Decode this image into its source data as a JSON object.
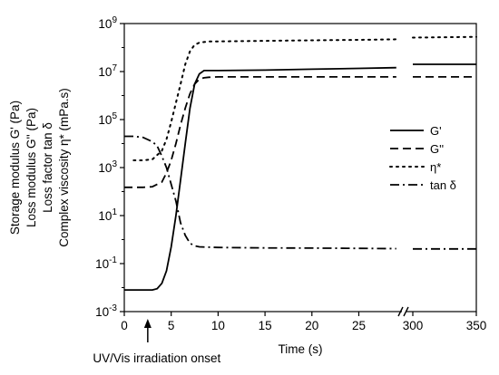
{
  "chart_data": {
    "type": "line",
    "xlabel": "Time (s)",
    "ylabel_lines": [
      "Storage modulus G' (Pa)",
      "Loss modulus G'' (Pa)",
      "Loss factor tan δ",
      "Complex viscosity η* (mPa.s)"
    ],
    "x_axis": {
      "segments": [
        {
          "range": [
            0,
            29.5
          ],
          "ticks": [
            0,
            5,
            10,
            15,
            20,
            25
          ]
        },
        {
          "range": [
            295,
            350
          ],
          "ticks": [
            300,
            350
          ]
        }
      ],
      "tick_labels": [
        "0",
        "5",
        "10",
        "15",
        "20",
        "25",
        "300",
        "350"
      ],
      "break_between": [
        29.5,
        295
      ]
    },
    "y_axis": {
      "scale": "log",
      "range": [
        0.001,
        1000000000
      ],
      "ticks": [
        0.001,
        0.1,
        10,
        1000,
        100000,
        10000000,
        1000000000
      ],
      "tick_labels": [
        {
          "base": "10",
          "exp": "-3"
        },
        {
          "base": "10",
          "exp": "-1"
        },
        {
          "base": "10",
          "exp": "1"
        },
        {
          "base": "10",
          "exp": "3"
        },
        {
          "base": "10",
          "exp": "5"
        },
        {
          "base": "10",
          "exp": "7"
        },
        {
          "base": "10",
          "exp": "9"
        }
      ]
    },
    "legend_position": "right",
    "series": [
      {
        "name": "G'",
        "dash": "solid",
        "x": [
          0,
          2,
          3,
          3.5,
          4,
          4.5,
          5,
          5.5,
          6,
          6.5,
          7,
          7.5,
          8,
          8.5,
          9,
          10,
          15,
          20,
          25,
          29,
          300,
          325,
          350
        ],
        "y": [
          0.008,
          0.008,
          0.008,
          0.009,
          0.015,
          0.05,
          0.5,
          10,
          300,
          10000,
          300000,
          3000000,
          8000000,
          11000000,
          11000000,
          11000000,
          11500000,
          12500000,
          13500000,
          14500000,
          20000000,
          20000000,
          20000000
        ]
      },
      {
        "name": "G''",
        "dash": "dash",
        "x": [
          0,
          2,
          3,
          4,
          4.5,
          5,
          5.5,
          6,
          6.5,
          7,
          7.5,
          8,
          8.5,
          9,
          10,
          15,
          20,
          25,
          29,
          300,
          325,
          350
        ],
        "y": [
          150,
          150,
          160,
          250,
          600,
          2000,
          10000,
          60000,
          300000,
          1200000,
          3000000,
          4800000,
          5500000,
          5800000,
          6000000,
          6000000,
          6000000,
          6000000,
          6000000,
          6000000,
          6000000,
          6000000
        ]
      },
      {
        "name": "η*",
        "dash": "dot",
        "x": [
          1,
          2,
          3,
          4,
          4.5,
          5,
          5.5,
          6,
          6.5,
          7,
          7.5,
          8,
          8.5,
          9,
          10,
          15,
          20,
          25,
          29,
          300,
          325,
          350
        ],
        "y": [
          2000,
          2000,
          2200,
          5000,
          15000,
          80000,
          500000,
          3000000,
          20000000,
          70000000,
          130000000,
          160000000,
          170000000,
          180000000,
          180000000,
          190000000,
          200000000,
          210000000,
          220000000,
          260000000,
          270000000,
          280000000
        ]
      },
      {
        "name": "tan δ",
        "dash": "dashdot",
        "x": [
          0,
          1,
          2,
          3,
          3.5,
          4,
          4.5,
          5,
          5.5,
          6,
          6.5,
          7,
          7.5,
          8,
          9,
          10,
          15,
          20,
          25,
          29,
          300,
          325,
          350
        ],
        "y": [
          20000,
          20000,
          18000,
          12000,
          8000,
          3000,
          1000,
          200,
          40,
          5,
          1.5,
          0.7,
          0.55,
          0.5,
          0.48,
          0.47,
          0.45,
          0.44,
          0.43,
          0.42,
          0.41,
          0.41,
          0.41
        ]
      }
    ],
    "annotations": [
      {
        "text": "UV/Vis irradiation onset",
        "points_to_x": 2.5,
        "marker": "arrow"
      }
    ]
  }
}
